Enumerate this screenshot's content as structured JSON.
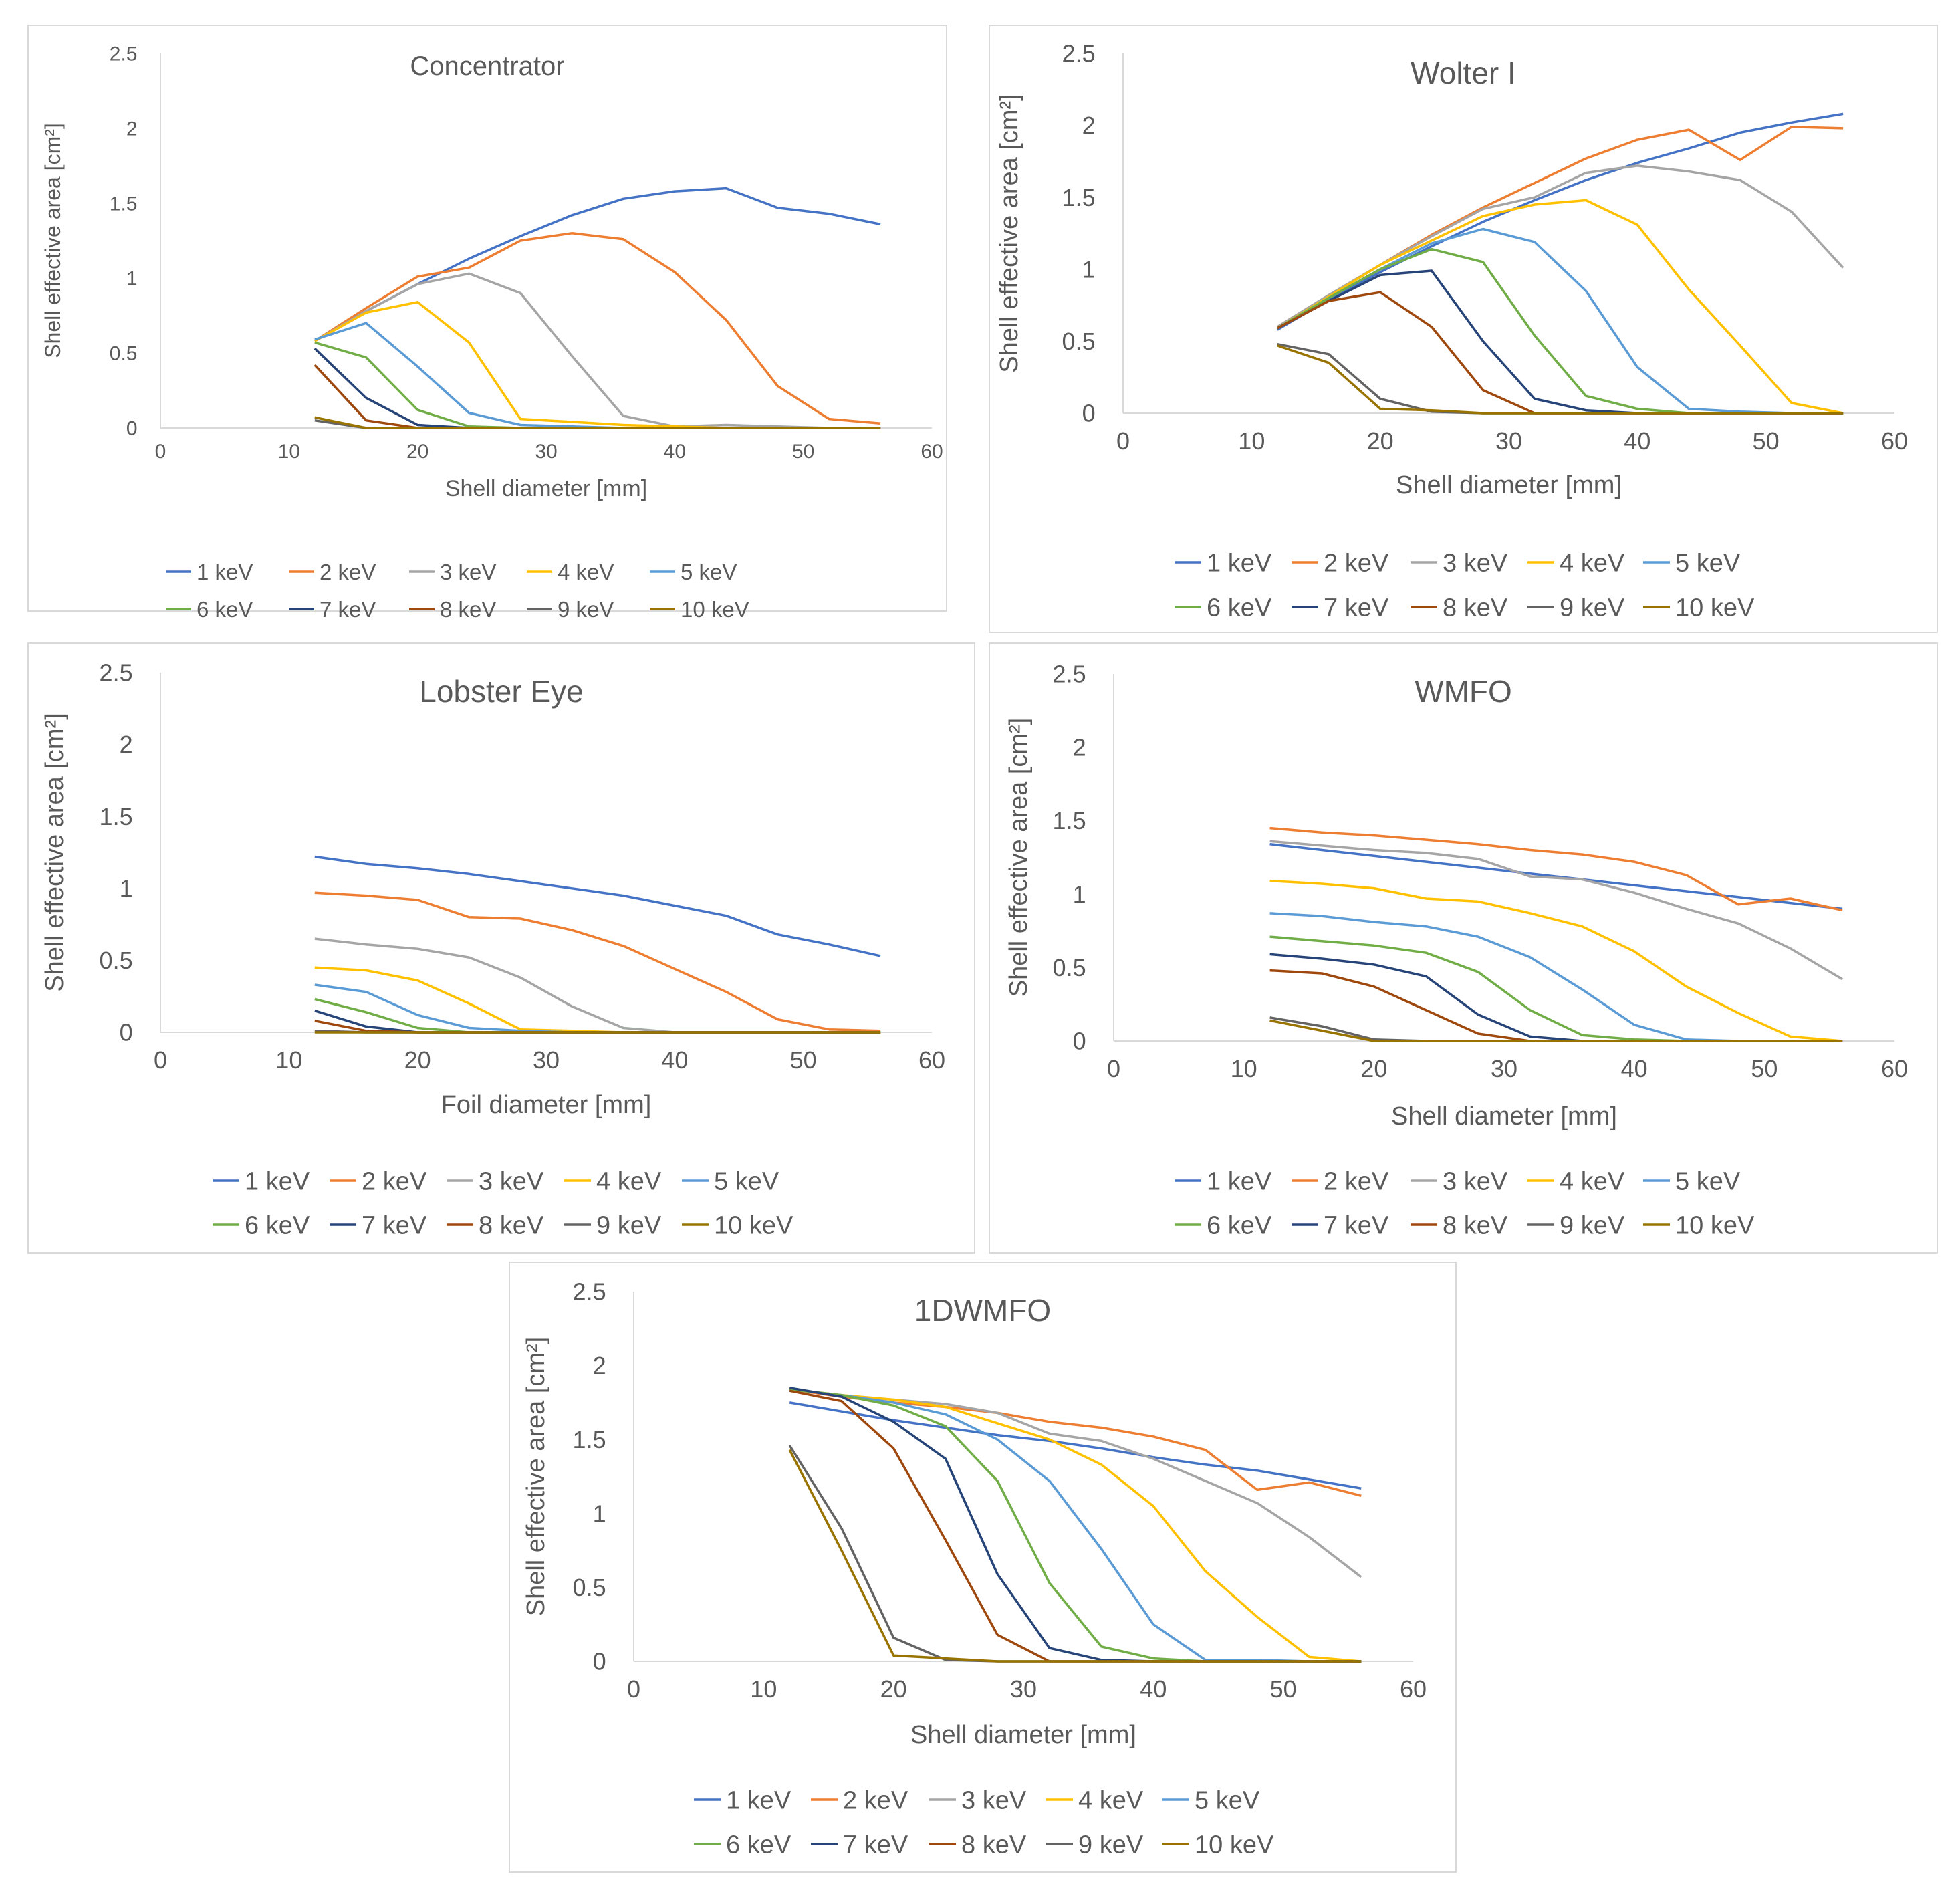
{
  "legend_labels": [
    "1 keV",
    "2 keV",
    "3 keV",
    "4 keV",
    "5 keV",
    "6 keV",
    "7 keV",
    "8 keV",
    "9 keV",
    "10 keV"
  ],
  "series_colors": [
    "#4472c4",
    "#ed7d31",
    "#a5a5a5",
    "#ffc000",
    "#5b9bd5",
    "#70ad47",
    "#264478",
    "#9e480e",
    "#636363",
    "#997300"
  ],
  "chart_data": [
    {
      "type": "line",
      "title": "Concentrator",
      "xlabel": "Shell diameter [mm]",
      "ylabel": "Shell effective area [cm²]",
      "xlim": [
        0,
        60
      ],
      "ylim": [
        0,
        2.5
      ],
      "xticks": [
        "0",
        "10",
        "20",
        "30",
        "40",
        "50",
        "60"
      ],
      "yticks": [
        "0",
        "0.5",
        "1",
        "1.5",
        "2",
        "2.5"
      ],
      "x": [
        12,
        16,
        20,
        24,
        28,
        32,
        36,
        40,
        44,
        48,
        52,
        56
      ],
      "series": [
        {
          "name": "1 keV",
          "values": [
            0.58,
            0.78,
            0.96,
            1.13,
            1.28,
            1.42,
            1.53,
            1.58,
            1.6,
            1.47,
            1.43,
            1.36
          ]
        },
        {
          "name": "2 keV",
          "values": [
            0.58,
            0.8,
            1.01,
            1.07,
            1.25,
            1.3,
            1.26,
            1.04,
            0.72,
            0.28,
            0.06,
            0.03
          ]
        },
        {
          "name": "3 keV",
          "values": [
            0.58,
            0.78,
            0.96,
            1.03,
            0.9,
            0.48,
            0.08,
            0.01,
            0.02,
            0.01,
            0.0,
            0.0
          ]
        },
        {
          "name": "4 keV",
          "values": [
            0.58,
            0.77,
            0.84,
            0.57,
            0.06,
            0.04,
            0.02,
            0.01,
            0.0,
            0.0,
            0.0,
            0.0
          ]
        },
        {
          "name": "5 keV",
          "values": [
            0.59,
            0.7,
            0.41,
            0.1,
            0.02,
            0.01,
            0.0,
            0.0,
            0.0,
            0.0,
            0.0,
            0.0
          ]
        },
        {
          "name": "6 keV",
          "values": [
            0.57,
            0.47,
            0.12,
            0.01,
            0.0,
            0.0,
            0.0,
            0.0,
            0.0,
            0.0,
            0.0,
            0.0
          ]
        },
        {
          "name": "7 keV",
          "values": [
            0.53,
            0.2,
            0.02,
            0.0,
            0.0,
            0.0,
            0.0,
            0.0,
            0.0,
            0.0,
            0.0,
            0.0
          ]
        },
        {
          "name": "8 keV",
          "values": [
            0.42,
            0.05,
            0.0,
            0.0,
            0.0,
            0.0,
            0.0,
            0.0,
            0.0,
            0.0,
            0.0,
            0.0
          ]
        },
        {
          "name": "9 keV",
          "values": [
            0.05,
            0.0,
            0.0,
            0.0,
            0.0,
            0.0,
            0.0,
            0.0,
            0.0,
            0.0,
            0.0,
            0.0
          ]
        },
        {
          "name": "10 keV",
          "values": [
            0.07,
            0.0,
            0.0,
            0.0,
            0.0,
            0.0,
            0.0,
            0.0,
            0.0,
            0.0,
            0.0,
            0.0
          ]
        }
      ]
    },
    {
      "type": "line",
      "title": "Wolter I",
      "xlabel": "Shell diameter [mm]",
      "ylabel": "Shell effective area [cm²]",
      "xlim": [
        0,
        60
      ],
      "ylim": [
        0,
        2.5
      ],
      "xticks": [
        "0",
        "10",
        "20",
        "30",
        "40",
        "50",
        "60"
      ],
      "yticks": [
        "0",
        "0.5",
        "1",
        "1.5",
        "2",
        "2.5"
      ],
      "x": [
        12,
        16,
        20,
        24,
        28,
        32,
        36,
        40,
        44,
        48,
        52,
        56
      ],
      "series": [
        {
          "name": "1 keV",
          "values": [
            0.58,
            0.79,
            0.98,
            1.16,
            1.33,
            1.48,
            1.62,
            1.74,
            1.84,
            1.95,
            2.02,
            2.08
          ]
        },
        {
          "name": "2 keV",
          "values": [
            0.6,
            0.82,
            1.03,
            1.24,
            1.43,
            1.6,
            1.77,
            1.9,
            1.97,
            1.76,
            1.99,
            1.98
          ]
        },
        {
          "name": "3 keV",
          "values": [
            0.6,
            0.82,
            1.03,
            1.23,
            1.42,
            1.5,
            1.67,
            1.72,
            1.68,
            1.62,
            1.4,
            1.01
          ]
        },
        {
          "name": "4 keV",
          "values": [
            0.59,
            0.81,
            1.03,
            1.2,
            1.37,
            1.45,
            1.48,
            1.31,
            0.86,
            0.47,
            0.07,
            0.0
          ]
        },
        {
          "name": "5 keV",
          "values": [
            0.59,
            0.8,
            1.0,
            1.18,
            1.28,
            1.19,
            0.85,
            0.32,
            0.03,
            0.01,
            0.0,
            0.0
          ]
        },
        {
          "name": "6 keV",
          "values": [
            0.59,
            0.8,
            1.0,
            1.14,
            1.05,
            0.54,
            0.12,
            0.03,
            0.0,
            0.0,
            0.0,
            0.0
          ]
        },
        {
          "name": "7 keV",
          "values": [
            0.59,
            0.78,
            0.96,
            0.99,
            0.5,
            0.1,
            0.02,
            0.0,
            0.0,
            0.0,
            0.0,
            0.0
          ]
        },
        {
          "name": "8 keV",
          "values": [
            0.59,
            0.78,
            0.84,
            0.6,
            0.16,
            0.0,
            0.0,
            0.0,
            0.0,
            0.0,
            0.0,
            0.0
          ]
        },
        {
          "name": "9 keV",
          "values": [
            0.48,
            0.41,
            0.1,
            0.01,
            0.0,
            0.0,
            0.0,
            0.0,
            0.0,
            0.0,
            0.0,
            0.0
          ]
        },
        {
          "name": "10 keV",
          "values": [
            0.47,
            0.35,
            0.03,
            0.02,
            0.0,
            0.0,
            0.0,
            0.0,
            0.0,
            0.0,
            0.0,
            0.0
          ]
        }
      ]
    },
    {
      "type": "line",
      "title": "Lobster Eye",
      "xlabel": "Foil diameter [mm]",
      "ylabel": "Shell effective area [cm²]",
      "xlim": [
        0,
        60
      ],
      "ylim": [
        0,
        2.5
      ],
      "xticks": [
        "0",
        "10",
        "20",
        "30",
        "40",
        "50",
        "60"
      ],
      "yticks": [
        "0",
        "0.5",
        "1",
        "1.5",
        "2",
        "2.5"
      ],
      "x": [
        12,
        16,
        20,
        24,
        28,
        32,
        36,
        40,
        44,
        48,
        52,
        56
      ],
      "series": [
        {
          "name": "1 keV",
          "values": [
            1.22,
            1.17,
            1.14,
            1.1,
            1.05,
            1.0,
            0.95,
            0.88,
            0.81,
            0.68,
            0.61,
            0.53
          ]
        },
        {
          "name": "2 keV",
          "values": [
            0.97,
            0.95,
            0.92,
            0.8,
            0.79,
            0.71,
            0.6,
            0.44,
            0.28,
            0.09,
            0.02,
            0.01
          ]
        },
        {
          "name": "3 keV",
          "values": [
            0.65,
            0.61,
            0.58,
            0.52,
            0.38,
            0.18,
            0.03,
            0.0,
            0.0,
            0.0,
            0.0,
            0.0
          ]
        },
        {
          "name": "4 keV",
          "values": [
            0.45,
            0.43,
            0.36,
            0.2,
            0.02,
            0.01,
            0.0,
            0.0,
            0.0,
            0.0,
            0.0,
            0.0
          ]
        },
        {
          "name": "5 keV",
          "values": [
            0.33,
            0.28,
            0.12,
            0.03,
            0.01,
            0.0,
            0.0,
            0.0,
            0.0,
            0.0,
            0.0,
            0.0
          ]
        },
        {
          "name": "6 keV",
          "values": [
            0.23,
            0.14,
            0.03,
            0.0,
            0.0,
            0.0,
            0.0,
            0.0,
            0.0,
            0.0,
            0.0,
            0.0
          ]
        },
        {
          "name": "7 keV",
          "values": [
            0.15,
            0.04,
            0.0,
            0.0,
            0.0,
            0.0,
            0.0,
            0.0,
            0.0,
            0.0,
            0.0,
            0.0
          ]
        },
        {
          "name": "8 keV",
          "values": [
            0.08,
            0.01,
            0.0,
            0.0,
            0.0,
            0.0,
            0.0,
            0.0,
            0.0,
            0.0,
            0.0,
            0.0
          ]
        },
        {
          "name": "9 keV",
          "values": [
            0.01,
            0.0,
            0.0,
            0.0,
            0.0,
            0.0,
            0.0,
            0.0,
            0.0,
            0.0,
            0.0,
            0.0
          ]
        },
        {
          "name": "10 keV",
          "values": [
            0.0,
            0.0,
            0.0,
            0.0,
            0.0,
            0.0,
            0.0,
            0.0,
            0.0,
            0.0,
            0.0,
            0.0
          ]
        }
      ]
    },
    {
      "type": "line",
      "title": "WMFO",
      "xlabel": "Shell diameter [mm]",
      "ylabel": "Shell effective area [cm²]",
      "xlim": [
        0,
        60
      ],
      "ylim": [
        0,
        2.5
      ],
      "xticks": [
        "0",
        "10",
        "20",
        "30",
        "40",
        "50",
        "60"
      ],
      "yticks": [
        "0",
        "0.5",
        "1",
        "1.5",
        "2",
        "2.5"
      ],
      "x": [
        12,
        16,
        20,
        24,
        28,
        32,
        36,
        40,
        44,
        48,
        52,
        56
      ],
      "series": [
        {
          "name": "1 keV",
          "values": [
            1.34,
            1.3,
            1.26,
            1.22,
            1.18,
            1.14,
            1.1,
            1.06,
            1.02,
            0.98,
            0.94,
            0.9
          ]
        },
        {
          "name": "2 keV",
          "values": [
            1.45,
            1.42,
            1.4,
            1.37,
            1.34,
            1.3,
            1.27,
            1.22,
            1.13,
            0.93,
            0.97,
            0.89
          ]
        },
        {
          "name": "3 keV",
          "values": [
            1.36,
            1.33,
            1.3,
            1.28,
            1.24,
            1.12,
            1.1,
            1.01,
            0.9,
            0.8,
            0.63,
            0.42
          ]
        },
        {
          "name": "4 keV",
          "values": [
            1.09,
            1.07,
            1.04,
            0.97,
            0.95,
            0.87,
            0.78,
            0.61,
            0.37,
            0.19,
            0.03,
            0.0
          ]
        },
        {
          "name": "5 keV",
          "values": [
            0.87,
            0.85,
            0.81,
            0.78,
            0.71,
            0.57,
            0.35,
            0.11,
            0.01,
            0.0,
            0.0,
            0.0
          ]
        },
        {
          "name": "6 keV",
          "values": [
            0.71,
            0.68,
            0.65,
            0.6,
            0.47,
            0.21,
            0.04,
            0.01,
            0.0,
            0.0,
            0.0,
            0.0
          ]
        },
        {
          "name": "7 keV",
          "values": [
            0.59,
            0.56,
            0.52,
            0.44,
            0.18,
            0.03,
            0.0,
            0.0,
            0.0,
            0.0,
            0.0,
            0.0
          ]
        },
        {
          "name": "8 keV",
          "values": [
            0.48,
            0.46,
            0.37,
            0.21,
            0.05,
            0.0,
            0.0,
            0.0,
            0.0,
            0.0,
            0.0,
            0.0
          ]
        },
        {
          "name": "9 keV",
          "values": [
            0.16,
            0.1,
            0.01,
            0.0,
            0.0,
            0.0,
            0.0,
            0.0,
            0.0,
            0.0,
            0.0,
            0.0
          ]
        },
        {
          "name": "10 keV",
          "values": [
            0.14,
            0.07,
            0.0,
            0.0,
            0.0,
            0.0,
            0.0,
            0.0,
            0.0,
            0.0,
            0.0,
            0.0
          ]
        }
      ]
    },
    {
      "type": "line",
      "title": "1DWMFO",
      "xlabel": "Shell diameter [mm]",
      "ylabel": "Shell effective area [cm²]",
      "xlim": [
        0,
        60
      ],
      "ylim": [
        0,
        2.5
      ],
      "xticks": [
        "0",
        "10",
        "20",
        "30",
        "40",
        "50",
        "60"
      ],
      "yticks": [
        "0",
        "0.5",
        "1",
        "1.5",
        "2",
        "2.5"
      ],
      "x": [
        12,
        16,
        20,
        24,
        28,
        32,
        36,
        40,
        44,
        48,
        52,
        56
      ],
      "series": [
        {
          "name": "1 keV",
          "values": [
            1.75,
            1.69,
            1.63,
            1.58,
            1.53,
            1.49,
            1.44,
            1.38,
            1.33,
            1.29,
            1.23,
            1.17
          ]
        },
        {
          "name": "2 keV",
          "values": [
            1.84,
            1.79,
            1.75,
            1.72,
            1.68,
            1.62,
            1.58,
            1.52,
            1.43,
            1.16,
            1.21,
            1.12
          ]
        },
        {
          "name": "3 keV",
          "values": [
            1.84,
            1.8,
            1.77,
            1.74,
            1.68,
            1.54,
            1.49,
            1.37,
            1.22,
            1.07,
            0.84,
            0.57
          ]
        },
        {
          "name": "4 keV",
          "values": [
            1.84,
            1.8,
            1.77,
            1.72,
            1.61,
            1.5,
            1.33,
            1.05,
            0.61,
            0.3,
            0.03,
            0.0
          ]
        },
        {
          "name": "5 keV",
          "values": [
            1.84,
            1.8,
            1.75,
            1.67,
            1.5,
            1.22,
            0.76,
            0.25,
            0.01,
            0.01,
            0.0,
            0.0
          ]
        },
        {
          "name": "6 keV",
          "values": [
            1.84,
            1.8,
            1.73,
            1.59,
            1.22,
            0.53,
            0.1,
            0.02,
            0.0,
            0.0,
            0.0,
            0.0
          ]
        },
        {
          "name": "7 keV",
          "values": [
            1.85,
            1.79,
            1.62,
            1.37,
            0.59,
            0.09,
            0.01,
            0.0,
            0.0,
            0.0,
            0.0,
            0.0
          ]
        },
        {
          "name": "8 keV",
          "values": [
            1.83,
            1.76,
            1.44,
            0.82,
            0.18,
            0.0,
            0.0,
            0.0,
            0.0,
            0.0,
            0.0,
            0.0
          ]
        },
        {
          "name": "9 keV",
          "values": [
            1.46,
            0.9,
            0.16,
            0.01,
            0.0,
            0.0,
            0.0,
            0.0,
            0.0,
            0.0,
            0.0,
            0.0
          ]
        },
        {
          "name": "10 keV",
          "values": [
            1.43,
            0.75,
            0.04,
            0.02,
            0.0,
            0.0,
            0.0,
            0.0,
            0.0,
            0.0,
            0.0,
            0.0
          ]
        }
      ]
    }
  ]
}
